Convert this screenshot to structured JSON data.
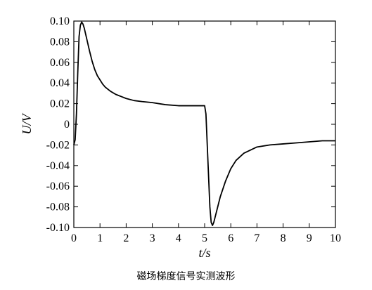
{
  "caption": "磁场梯度信号实测波形",
  "chart_data": {
    "type": "line",
    "title": "",
    "xlabel": "t/s",
    "ylabel": "U/V",
    "xlim": [
      0,
      10
    ],
    "ylim": [
      -0.1,
      0.1
    ],
    "xticks": [
      0,
      1,
      2,
      3,
      4,
      5,
      6,
      7,
      8,
      9,
      10
    ],
    "yticks": [
      -0.1,
      -0.08,
      -0.06,
      -0.04,
      -0.02,
      0,
      0.02,
      0.04,
      0.06,
      0.08,
      0.1
    ],
    "xtick_labels": [
      "0",
      "1",
      "2",
      "3",
      "4",
      "5",
      "6",
      "7",
      "8",
      "9",
      "10"
    ],
    "ytick_labels": [
      "-0.10",
      "-0.08",
      "-0.06",
      "-0.04",
      "-0.02",
      "0",
      "0.02",
      "0.04",
      "0.06",
      "0.08",
      "0.10"
    ],
    "grid": false,
    "color": "#000000",
    "series": [
      {
        "x": [
          0,
          0.05,
          0.1,
          0.15,
          0.2,
          0.25,
          0.3,
          0.35,
          0.4,
          0.5,
          0.6,
          0.7,
          0.8,
          0.9,
          1.0,
          1.1,
          1.2,
          1.4,
          1.6,
          1.8,
          2.0,
          2.3,
          2.6,
          3.0,
          3.5,
          4.0,
          4.5,
          4.9,
          5.0,
          5.05,
          5.1,
          5.15,
          5.2,
          5.25,
          5.3,
          5.35,
          5.4,
          5.5,
          5.6,
          5.8,
          6.0,
          6.2,
          6.5,
          7.0,
          7.5,
          8.0,
          8.5,
          9.0,
          9.5,
          10.0
        ],
        "y": [
          -0.02,
          -0.015,
          0.01,
          0.05,
          0.085,
          0.096,
          0.099,
          0.097,
          0.093,
          0.082,
          0.071,
          0.061,
          0.053,
          0.047,
          0.043,
          0.039,
          0.036,
          0.032,
          0.029,
          0.027,
          0.025,
          0.023,
          0.022,
          0.021,
          0.019,
          0.018,
          0.018,
          0.018,
          0.018,
          0.01,
          -0.02,
          -0.05,
          -0.08,
          -0.095,
          -0.098,
          -0.095,
          -0.09,
          -0.08,
          -0.07,
          -0.055,
          -0.043,
          -0.035,
          -0.028,
          -0.022,
          -0.02,
          -0.019,
          -0.018,
          -0.017,
          -0.016,
          -0.016
        ]
      }
    ]
  }
}
